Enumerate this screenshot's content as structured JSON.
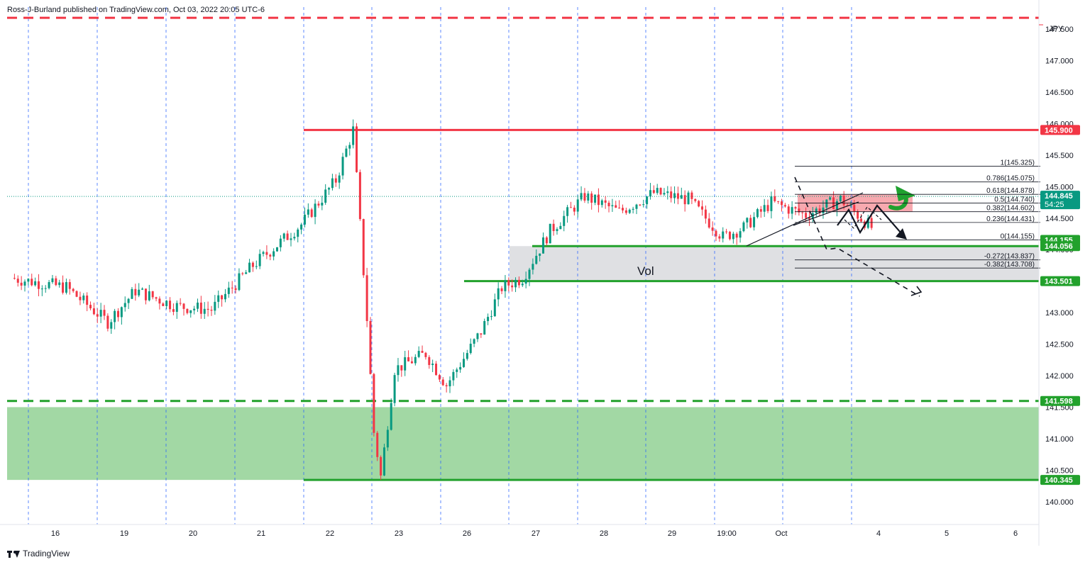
{
  "attribution": "Ross-J-Burland published on TradingView.com, Oct 03, 2022 20:05 UTC-6",
  "footer": {
    "brand": "TradingView",
    "logo_icon": "tradingview-logo-icon"
  },
  "chart_data": {
    "type": "candlestick",
    "instrument_label": "JPY",
    "y_range": [
      139.75,
      147.85
    ],
    "y_ticks": [
      "147.500",
      "147.000",
      "146.500",
      "146.000",
      "145.500",
      "145.000",
      "144.500",
      "144.000",
      "143.500",
      "143.000",
      "142.500",
      "142.000",
      "141.500",
      "141.000",
      "140.500",
      "140.000"
    ],
    "x_ticks": [
      "16",
      "19",
      "20",
      "21",
      "22",
      "23",
      "26",
      "27",
      "28",
      "29",
      "19:00",
      "Oct",
      "4",
      "5",
      "6"
    ],
    "current_price": "144.845",
    "countdown": "54:25",
    "price_tags": [
      {
        "value": 145.9,
        "label": "145.900",
        "color": "#f23645"
      },
      {
        "value": 144.155,
        "label": "144.155",
        "color": "#22a12c"
      },
      {
        "value": 144.056,
        "label": "144.056",
        "color": "#22a12c"
      },
      {
        "value": 143.501,
        "label": "143.501",
        "color": "#22a12c"
      },
      {
        "value": 141.598,
        "label": "141.598",
        "color": "#22a12c"
      },
      {
        "value": 140.345,
        "label": "140.345",
        "color": "#22a12c"
      }
    ],
    "levels": [
      {
        "value": 147.68,
        "style": "dashed",
        "color": "#f23645"
      },
      {
        "value": 145.9,
        "style": "solid",
        "color": "#f23645"
      },
      {
        "value": 144.056,
        "style": "solid",
        "color": "#22a12c"
      },
      {
        "value": 143.501,
        "style": "solid",
        "color": "#22a12c"
      },
      {
        "value": 141.598,
        "style": "dashed",
        "color": "#22a12c"
      },
      {
        "value": 140.345,
        "style": "solid",
        "color": "#22a12c"
      }
    ],
    "zones": [
      {
        "from": 140.345,
        "to": 141.5,
        "color": "#98d49a",
        "name": "demand-zone"
      },
      {
        "from": 143.501,
        "to": 144.056,
        "color": "#dcdde0",
        "name": "volume-zone"
      },
      {
        "from": 144.6,
        "to": 144.878,
        "color": "#f6a0a6",
        "name": "resistance-zone"
      }
    ],
    "fib_levels": [
      {
        "ratio": "1",
        "price": 145.325,
        "label": "1(145.325)"
      },
      {
        "ratio": "0.786",
        "price": 145.075,
        "label": "0.786(145.075)"
      },
      {
        "ratio": "0.618",
        "price": 144.878,
        "label": "0.618(144.878)"
      },
      {
        "ratio": "0.5",
        "price": 144.74,
        "label": "0.5(144.740)"
      },
      {
        "ratio": "0.382",
        "price": 144.602,
        "label": "0.382(144.602)"
      },
      {
        "ratio": "0.236",
        "price": 144.431,
        "label": "0.236(144.431)"
      },
      {
        "ratio": "0",
        "price": 144.155,
        "label": "0(144.155)"
      },
      {
        "ratio": "-0.272",
        "price": 143.837,
        "label": "-0.272(143.837)"
      },
      {
        "ratio": "-0.382",
        "price": 143.708,
        "label": "-0.382(143.708)"
      }
    ],
    "annotation_vol": "Vol",
    "path_keypoints": [
      {
        "day": 0.0,
        "price": 143.55
      },
      {
        "day": 0.8,
        "price": 143.4
      },
      {
        "day": 1.4,
        "price": 142.85
      },
      {
        "day": 1.8,
        "price": 143.35
      },
      {
        "day": 2.4,
        "price": 143.1
      },
      {
        "day": 2.9,
        "price": 143.05
      },
      {
        "day": 3.5,
        "price": 143.75
      },
      {
        "day": 4.2,
        "price": 144.4
      },
      {
        "day": 4.7,
        "price": 145.1
      },
      {
        "day": 4.95,
        "price": 145.9
      },
      {
        "day": 5.15,
        "price": 142.9
      },
      {
        "day": 5.25,
        "price": 141.1
      },
      {
        "day": 5.35,
        "price": 140.4
      },
      {
        "day": 5.55,
        "price": 142.1
      },
      {
        "day": 6.0,
        "price": 142.35
      },
      {
        "day": 6.3,
        "price": 141.85
      },
      {
        "day": 6.8,
        "price": 142.7
      },
      {
        "day": 7.1,
        "price": 143.4
      },
      {
        "day": 7.4,
        "price": 143.55
      },
      {
        "day": 7.8,
        "price": 144.3
      },
      {
        "day": 8.3,
        "price": 144.85
      },
      {
        "day": 8.8,
        "price": 144.6
      },
      {
        "day": 9.3,
        "price": 144.9
      },
      {
        "day": 9.8,
        "price": 144.8
      },
      {
        "day": 10.3,
        "price": 144.2
      },
      {
        "day": 10.6,
        "price": 144.35
      },
      {
        "day": 11.0,
        "price": 144.75
      },
      {
        "day": 11.5,
        "price": 144.55
      },
      {
        "day": 12.0,
        "price": 144.8
      },
      {
        "day": 12.5,
        "price": 144.3
      },
      {
        "day": 12.9,
        "price": 144.65
      },
      {
        "day": 13.3,
        "price": 144.9
      },
      {
        "day": 13.5,
        "price": 145.05
      },
      {
        "day": 13.7,
        "price": 145.2
      },
      {
        "day": 13.9,
        "price": 144.55
      },
      {
        "day": 14.2,
        "price": 144.35
      },
      {
        "day": 14.5,
        "price": 144.75
      },
      {
        "day": 14.75,
        "price": 144.85
      }
    ]
  }
}
